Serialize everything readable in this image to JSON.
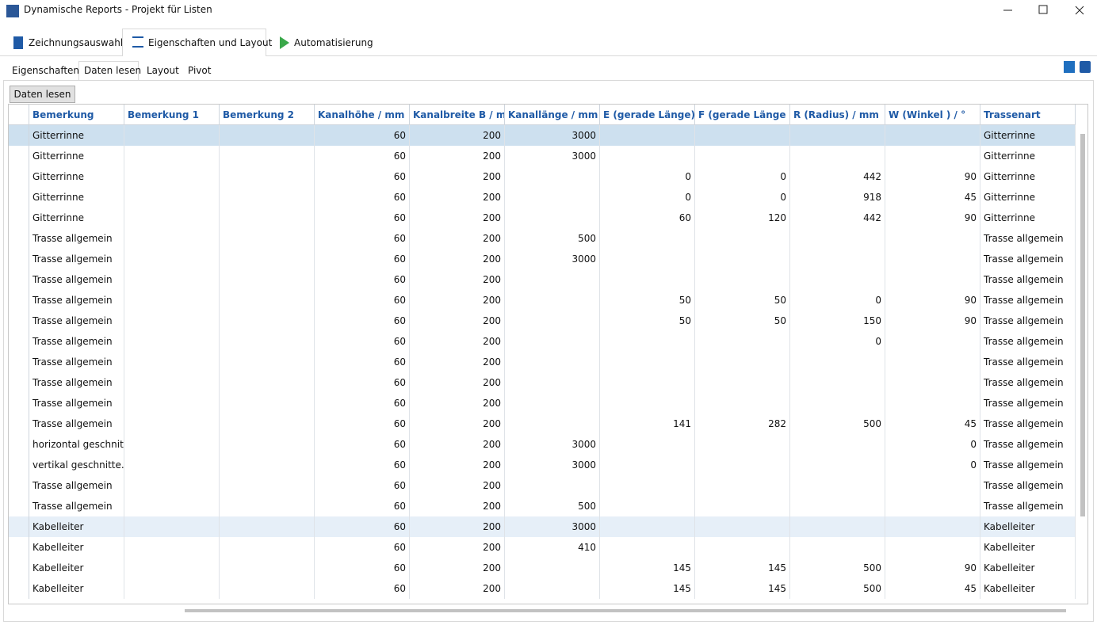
{
  "window": {
    "title": "Dynamische Reports - Projekt für Listen"
  },
  "tabs": [
    "Zeichnungsauswahl",
    "Eigenschaften und Layout",
    "Automatisierung"
  ],
  "subtabs": [
    "Eigenschaften",
    "Daten lesen",
    "Layout",
    "Pivot"
  ],
  "button": "Daten lesen",
  "table": {
    "columns": [
      "Bemerkung",
      "Bemerkung 1",
      "Bemerkung 2",
      "Kanalhöhe / mm",
      "Kanalbreite B / mm",
      "Kanallänge / mm",
      "E (gerade Länge)...",
      "F (gerade Länge a...",
      "R (Radius) / mm",
      "W (Winkel ) / °",
      "Trassenart"
    ],
    "rows": [
      [
        "Gitterrinne",
        null,
        null,
        60,
        200,
        3000,
        null,
        null,
        null,
        null,
        "Gitterrinne"
      ],
      [
        "Gitterrinne",
        null,
        null,
        60,
        200,
        3000,
        null,
        null,
        null,
        null,
        "Gitterrinne"
      ],
      [
        "Gitterrinne",
        null,
        null,
        60,
        200,
        null,
        0,
        0,
        442,
        90,
        "Gitterrinne"
      ],
      [
        "Gitterrinne",
        null,
        null,
        60,
        200,
        null,
        0,
        0,
        918,
        45,
        "Gitterrinne"
      ],
      [
        "Gitterrinne",
        null,
        null,
        60,
        200,
        null,
        60,
        120,
        442,
        90,
        "Gitterrinne"
      ],
      [
        "Trasse allgemein",
        null,
        null,
        60,
        200,
        500,
        null,
        null,
        null,
        null,
        "Trasse allgemein"
      ],
      [
        "Trasse allgemein",
        null,
        null,
        60,
        200,
        3000,
        null,
        null,
        null,
        null,
        "Trasse allgemein"
      ],
      [
        "Trasse allgemein",
        null,
        null,
        60,
        200,
        null,
        null,
        null,
        null,
        null,
        "Trasse allgemein"
      ],
      [
        "Trasse allgemein",
        null,
        null,
        60,
        200,
        null,
        50,
        50,
        0,
        90,
        "Trasse allgemein"
      ],
      [
        "Trasse allgemein",
        null,
        null,
        60,
        200,
        null,
        50,
        50,
        150,
        90,
        "Trasse allgemein"
      ],
      [
        "Trasse allgemein",
        null,
        null,
        60,
        200,
        null,
        null,
        null,
        0,
        null,
        "Trasse allgemein"
      ],
      [
        "Trasse allgemein",
        null,
        null,
        60,
        200,
        null,
        null,
        null,
        null,
        null,
        "Trasse allgemein"
      ],
      [
        "Trasse allgemein",
        null,
        null,
        60,
        200,
        null,
        null,
        null,
        null,
        null,
        "Trasse allgemein"
      ],
      [
        "Trasse allgemein",
        null,
        null,
        60,
        200,
        null,
        null,
        null,
        null,
        null,
        "Trasse allgemein"
      ],
      [
        "Trasse allgemein",
        null,
        null,
        60,
        200,
        null,
        141,
        282,
        500,
        45,
        "Trasse allgemein"
      ],
      [
        "horizontal geschnit...",
        null,
        null,
        60,
        200,
        3000,
        null,
        null,
        null,
        0,
        "Trasse allgemein"
      ],
      [
        "vertikal geschnitte...",
        null,
        null,
        60,
        200,
        3000,
        null,
        null,
        null,
        0,
        "Trasse allgemein"
      ],
      [
        "Trasse allgemein",
        null,
        null,
        60,
        200,
        null,
        null,
        null,
        null,
        null,
        "Trasse allgemein"
      ],
      [
        "Trasse allgemein",
        null,
        null,
        60,
        200,
        500,
        null,
        null,
        null,
        null,
        "Trasse allgemein"
      ],
      [
        "Kabelleiter",
        null,
        null,
        60,
        200,
        3000,
        null,
        null,
        null,
        null,
        "Kabelleiter"
      ],
      [
        "Kabelleiter",
        null,
        null,
        60,
        200,
        410,
        null,
        null,
        null,
        null,
        "Kabelleiter"
      ],
      [
        "Kabelleiter",
        null,
        null,
        60,
        200,
        null,
        145,
        145,
        500,
        90,
        "Kabelleiter"
      ],
      [
        "Kabelleiter",
        null,
        null,
        60,
        200,
        null,
        145,
        145,
        500,
        45,
        "Kabelleiter"
      ]
    ]
  }
}
